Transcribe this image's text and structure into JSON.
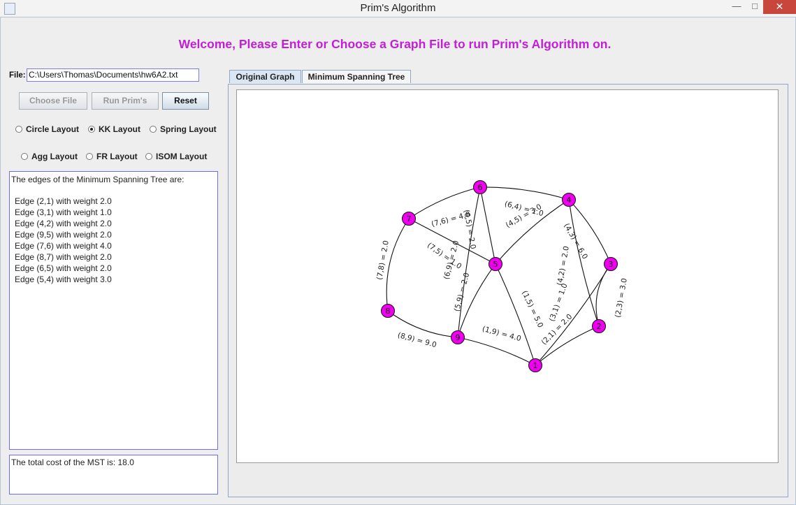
{
  "window": {
    "title": "Prim's Algorithm",
    "minimize_glyph": "—",
    "maximize_glyph": "□",
    "close_glyph": "✕"
  },
  "welcome": "Welcome, Please Enter or Choose a Graph File to run Prim's Algorithm on.",
  "file": {
    "label": "File:",
    "value": "C:\\Users\\Thomas\\Documents\\hw6A2.txt"
  },
  "buttons": {
    "choose_file": "Choose File",
    "run_prims": "Run Prim's",
    "reset": "Reset"
  },
  "layouts": {
    "circle": "Circle Layout",
    "kk": "KK Layout",
    "spring": "Spring Layout",
    "agg": "Agg Layout",
    "fr": "FR Layout",
    "isom": "ISOM Layout",
    "selected": "KK Layout"
  },
  "mst": {
    "header": "The edges of the Minimum Spanning Tree are:",
    "edges": [
      "Edge (2,1) with weight 2.0",
      "Edge (3,1) with weight 1.0",
      "Edge (4,2) with weight 2.0",
      "Edge (9,5) with weight 2.0",
      "Edge (7,6) with weight 4.0",
      "Edge (8,7) with weight 2.0",
      "Edge (6,5) with weight 2.0",
      "Edge (5,4) with weight 3.0"
    ],
    "total": "The total cost of the MST is: 18.0"
  },
  "tabs": {
    "original": "Original Graph",
    "mst": "Minimum Spanning Tree",
    "active": "Original Graph"
  },
  "graph": {
    "node_color": "#ee00ee",
    "nodes": [
      {
        "id": "1"
      },
      {
        "id": "2"
      },
      {
        "id": "3"
      },
      {
        "id": "4"
      },
      {
        "id": "5"
      },
      {
        "id": "6"
      },
      {
        "id": "7"
      },
      {
        "id": "8"
      },
      {
        "id": "9"
      }
    ],
    "edges": [
      {
        "u": "7",
        "v": "8",
        "label": "(7,8) = 2.0"
      },
      {
        "u": "7",
        "v": "6",
        "label": "(7,6) = 4.0"
      },
      {
        "u": "6",
        "v": "5",
        "label": "(6,5) = 2.0"
      },
      {
        "u": "6",
        "v": "4",
        "label": "(6,4) = 1.0"
      },
      {
        "u": "4",
        "v": "5",
        "label": "(4,5) = 3.0"
      },
      {
        "u": "4",
        "v": "3",
        "label": "(4,3) = 6.0"
      },
      {
        "u": "4",
        "v": "2",
        "label": "(4,2) = 2.0"
      },
      {
        "u": "7",
        "v": "5",
        "label": "(7,5) = 1.0"
      },
      {
        "u": "6",
        "v": "9",
        "label": "(6,9) = 2.0"
      },
      {
        "u": "5",
        "v": "9",
        "label": "(5,9) = 2.0"
      },
      {
        "u": "1",
        "v": "5",
        "label": "(1,5) = 5.0"
      },
      {
        "u": "3",
        "v": "1",
        "label": "(3,1) = 1.0"
      },
      {
        "u": "2",
        "v": "3",
        "label": "(2,3) = 3.0"
      },
      {
        "u": "2",
        "v": "1",
        "label": "(2,1) = 2.0"
      },
      {
        "u": "8",
        "v": "9",
        "label": "(8,9) = 9.0"
      },
      {
        "u": "1",
        "v": "9",
        "label": "(1,9) = 4.0"
      }
    ]
  }
}
